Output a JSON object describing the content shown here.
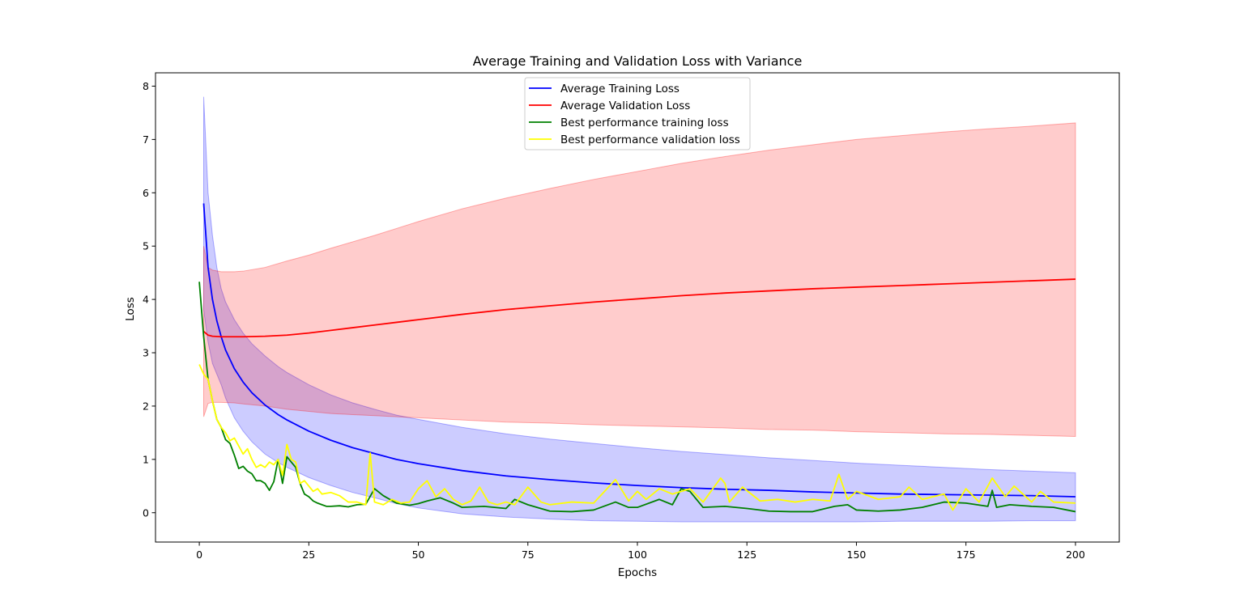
{
  "chart_data": {
    "type": "line",
    "title": "Average Training and Validation Loss with Variance",
    "xlabel": "Epochs",
    "ylabel": "Loss",
    "xlim": [
      -10,
      210
    ],
    "ylim": [
      -0.55,
      8.25
    ],
    "xticks": [
      0,
      25,
      50,
      75,
      100,
      125,
      150,
      175,
      200
    ],
    "yticks": [
      0,
      1,
      2,
      3,
      4,
      5,
      6,
      7,
      8
    ],
    "grid": false,
    "legend_position": "top-center",
    "series": [
      {
        "name": "Average Training Loss",
        "color": "#0000ff",
        "x": [
          1,
          2,
          3,
          4,
          5,
          6,
          8,
          10,
          12,
          15,
          18,
          20,
          25,
          30,
          35,
          40,
          45,
          50,
          60,
          70,
          80,
          90,
          100,
          110,
          120,
          130,
          140,
          150,
          160,
          170,
          180,
          190,
          200
        ],
        "y": [
          5.8,
          4.6,
          4.0,
          3.6,
          3.3,
          3.05,
          2.7,
          2.45,
          2.25,
          2.02,
          1.84,
          1.74,
          1.53,
          1.36,
          1.22,
          1.11,
          1.0,
          0.92,
          0.79,
          0.69,
          0.62,
          0.56,
          0.51,
          0.47,
          0.44,
          0.42,
          0.39,
          0.37,
          0.35,
          0.34,
          0.33,
          0.32,
          0.3
        ]
      },
      {
        "name": "Average Validation Loss",
        "color": "#ff0000",
        "x": [
          1,
          2,
          3,
          5,
          8,
          10,
          15,
          20,
          25,
          30,
          35,
          40,
          45,
          50,
          60,
          70,
          80,
          90,
          100,
          110,
          120,
          130,
          140,
          150,
          160,
          170,
          180,
          190,
          200
        ],
        "y": [
          3.4,
          3.33,
          3.31,
          3.3,
          3.3,
          3.3,
          3.31,
          3.33,
          3.37,
          3.42,
          3.47,
          3.52,
          3.57,
          3.62,
          3.72,
          3.81,
          3.88,
          3.95,
          4.01,
          4.07,
          4.12,
          4.16,
          4.2,
          4.23,
          4.26,
          4.29,
          4.32,
          4.35,
          4.38
        ]
      },
      {
        "name": "Best performance training loss",
        "color": "#008000",
        "x": [
          0,
          1,
          2,
          3,
          4,
          5,
          6,
          7,
          8,
          9,
          10,
          11,
          12,
          13,
          14,
          15,
          16,
          17,
          18,
          19,
          20,
          21,
          22,
          23,
          24,
          25,
          26,
          27,
          28,
          29,
          30,
          32,
          34,
          36,
          38,
          40,
          42,
          45,
          48,
          50,
          52,
          55,
          58,
          60,
          65,
          70,
          72,
          75,
          80,
          85,
          90,
          95,
          98,
          100,
          105,
          108,
          110,
          112,
          115,
          120,
          125,
          130,
          135,
          140,
          145,
          148,
          150,
          155,
          160,
          165,
          170,
          175,
          180,
          181,
          182,
          185,
          190,
          195,
          200
        ],
        "y": [
          4.33,
          3.3,
          2.5,
          2.1,
          1.75,
          1.6,
          1.37,
          1.3,
          1.08,
          0.83,
          0.87,
          0.78,
          0.73,
          0.6,
          0.6,
          0.55,
          0.42,
          0.58,
          1.0,
          0.55,
          1.05,
          0.95,
          0.85,
          0.55,
          0.35,
          0.3,
          0.22,
          0.18,
          0.15,
          0.12,
          0.12,
          0.13,
          0.11,
          0.15,
          0.16,
          0.45,
          0.32,
          0.18,
          0.14,
          0.17,
          0.22,
          0.28,
          0.18,
          0.1,
          0.12,
          0.08,
          0.25,
          0.15,
          0.03,
          0.02,
          0.05,
          0.2,
          0.1,
          0.1,
          0.25,
          0.15,
          0.45,
          0.4,
          0.1,
          0.12,
          0.08,
          0.03,
          0.02,
          0.02,
          0.12,
          0.15,
          0.05,
          0.03,
          0.05,
          0.1,
          0.2,
          0.18,
          0.12,
          0.42,
          0.1,
          0.15,
          0.12,
          0.1,
          0.02
        ]
      },
      {
        "name": "Best performance validation loss",
        "color": "#ffff00",
        "x": [
          0,
          1,
          2,
          3,
          4,
          5,
          6,
          7,
          8,
          9,
          10,
          11,
          12,
          13,
          14,
          15,
          16,
          17,
          18,
          19,
          20,
          21,
          22,
          23,
          24,
          25,
          26,
          27,
          28,
          30,
          32,
          34,
          36,
          38,
          39,
          40,
          42,
          44,
          46,
          48,
          50,
          52,
          54,
          56,
          58,
          60,
          62,
          64,
          66,
          68,
          70,
          72,
          75,
          78,
          80,
          85,
          90,
          95,
          98,
          100,
          102,
          105,
          108,
          110,
          112,
          115,
          119,
          120,
          121,
          124,
          128,
          132,
          136,
          140,
          144,
          146,
          148,
          150,
          155,
          160,
          162,
          165,
          170,
          172,
          175,
          178,
          181,
          184,
          186,
          190,
          192,
          195,
          200
        ],
        "y": [
          2.78,
          2.6,
          2.5,
          2.1,
          1.75,
          1.6,
          1.5,
          1.35,
          1.4,
          1.25,
          1.1,
          1.2,
          1.0,
          0.85,
          0.9,
          0.85,
          0.95,
          0.9,
          1.0,
          0.7,
          1.28,
          1.0,
          0.95,
          0.55,
          0.6,
          0.5,
          0.4,
          0.45,
          0.35,
          0.38,
          0.32,
          0.2,
          0.2,
          0.15,
          1.12,
          0.2,
          0.15,
          0.25,
          0.18,
          0.2,
          0.45,
          0.6,
          0.3,
          0.45,
          0.25,
          0.15,
          0.22,
          0.48,
          0.2,
          0.15,
          0.2,
          0.15,
          0.48,
          0.2,
          0.15,
          0.2,
          0.18,
          0.62,
          0.22,
          0.4,
          0.25,
          0.45,
          0.35,
          0.4,
          0.45,
          0.2,
          0.65,
          0.55,
          0.2,
          0.48,
          0.22,
          0.25,
          0.2,
          0.25,
          0.22,
          0.72,
          0.25,
          0.4,
          0.25,
          0.3,
          0.48,
          0.25,
          0.35,
          0.05,
          0.45,
          0.2,
          0.65,
          0.3,
          0.5,
          0.2,
          0.4,
          0.2,
          0.18
        ]
      }
    ],
    "bands": [
      {
        "of": "Average Training Loss",
        "color": "#0000ff",
        "opacity": 0.2,
        "x": [
          1,
          2,
          3,
          4,
          5,
          6,
          8,
          10,
          12,
          15,
          18,
          20,
          25,
          30,
          35,
          40,
          45,
          50,
          60,
          70,
          80,
          90,
          100,
          110,
          120,
          130,
          140,
          150,
          160,
          170,
          180,
          190,
          200
        ],
        "upper": [
          7.8,
          6.0,
          5.2,
          4.6,
          4.2,
          3.95,
          3.62,
          3.37,
          3.17,
          2.94,
          2.74,
          2.63,
          2.4,
          2.21,
          2.06,
          1.94,
          1.83,
          1.75,
          1.6,
          1.48,
          1.38,
          1.3,
          1.22,
          1.15,
          1.09,
          1.03,
          0.98,
          0.93,
          0.89,
          0.85,
          0.81,
          0.78,
          0.75
        ],
        "lower": [
          3.8,
          3.2,
          2.8,
          2.6,
          2.4,
          2.15,
          1.78,
          1.53,
          1.33,
          1.1,
          0.94,
          0.85,
          0.66,
          0.51,
          0.38,
          0.28,
          0.17,
          0.09,
          -0.02,
          -0.08,
          -0.12,
          -0.15,
          -0.16,
          -0.17,
          -0.17,
          -0.17,
          -0.17,
          -0.17,
          -0.16,
          -0.16,
          -0.16,
          -0.15,
          -0.15
        ]
      },
      {
        "of": "Average Validation Loss",
        "color": "#ff0000",
        "opacity": 0.2,
        "x": [
          1,
          2,
          3,
          5,
          8,
          10,
          15,
          20,
          25,
          30,
          35,
          40,
          45,
          50,
          60,
          70,
          80,
          90,
          100,
          110,
          120,
          130,
          140,
          150,
          160,
          170,
          180,
          190,
          200
        ],
        "upper": [
          5.0,
          4.6,
          4.55,
          4.52,
          4.52,
          4.53,
          4.6,
          4.72,
          4.83,
          4.96,
          5.08,
          5.2,
          5.33,
          5.46,
          5.7,
          5.9,
          6.08,
          6.25,
          6.4,
          6.55,
          6.68,
          6.8,
          6.9,
          7.0,
          7.07,
          7.14,
          7.2,
          7.25,
          7.31
        ],
        "lower": [
          1.8,
          2.05,
          2.07,
          2.07,
          2.06,
          2.04,
          2.0,
          1.94,
          1.9,
          1.86,
          1.84,
          1.82,
          1.8,
          1.78,
          1.74,
          1.7,
          1.68,
          1.65,
          1.63,
          1.61,
          1.59,
          1.56,
          1.55,
          1.52,
          1.5,
          1.48,
          1.47,
          1.45,
          1.43
        ]
      }
    ]
  }
}
